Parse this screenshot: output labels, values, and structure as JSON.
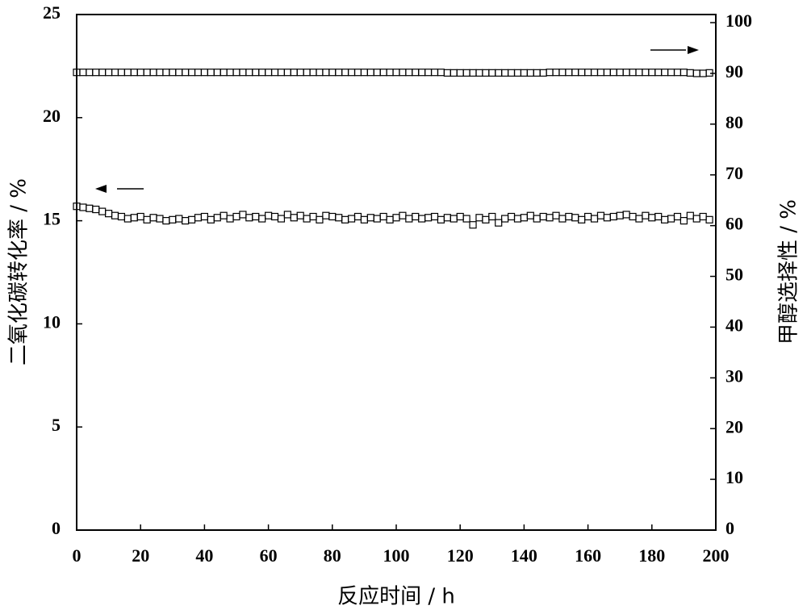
{
  "chart_data": {
    "type": "scatter",
    "xlabel": "反应时间 / h",
    "ylabel": "二氧化碳转化率 / %",
    "y2label": "甲醇选择性 / %",
    "x": [
      0,
      2,
      4,
      6,
      8,
      10,
      12,
      14,
      16,
      18,
      20,
      22,
      24,
      26,
      28,
      30,
      32,
      34,
      36,
      38,
      40,
      42,
      44,
      46,
      48,
      50,
      52,
      54,
      56,
      58,
      60,
      62,
      64,
      66,
      68,
      70,
      72,
      74,
      76,
      78,
      80,
      82,
      84,
      86,
      88,
      90,
      92,
      94,
      96,
      98,
      100,
      102,
      104,
      106,
      108,
      110,
      112,
      114,
      116,
      118,
      120,
      122,
      124,
      126,
      128,
      130,
      132,
      134,
      136,
      138,
      140,
      142,
      144,
      146,
      148,
      150,
      152,
      154,
      156,
      158,
      160,
      162,
      164,
      166,
      168,
      170,
      172,
      174,
      176,
      178,
      180,
      182,
      184,
      186,
      188,
      190,
      192,
      194,
      196,
      198
    ],
    "series": [
      {
        "color": "#000000",
        "values": [
          15.7,
          15.65,
          15.6,
          15.55,
          15.45,
          15.35,
          15.25,
          15.2,
          15.1,
          15.15,
          15.2,
          15.05,
          15.15,
          15.1,
          15.0,
          15.05,
          15.1,
          15.0,
          15.05,
          15.15,
          15.2,
          15.05,
          15.15,
          15.25,
          15.1,
          15.2,
          15.3,
          15.15,
          15.2,
          15.1,
          15.25,
          15.2,
          15.1,
          15.3,
          15.15,
          15.25,
          15.1,
          15.2,
          15.05,
          15.25,
          15.2,
          15.15,
          15.05,
          15.1,
          15.2,
          15.05,
          15.15,
          15.1,
          15.2,
          15.05,
          15.15,
          15.25,
          15.1,
          15.2,
          15.1,
          15.15,
          15.2,
          15.05,
          15.15,
          15.1,
          15.2,
          15.1,
          14.8,
          15.15,
          15.05,
          15.2,
          14.9,
          15.1,
          15.2,
          15.1,
          15.15,
          15.25,
          15.1,
          15.2,
          15.15,
          15.25,
          15.1,
          15.2,
          15.15,
          15.05,
          15.2,
          15.1,
          15.25,
          15.15,
          15.2,
          15.25,
          15.3,
          15.2,
          15.1,
          15.25,
          15.15,
          15.2,
          15.05,
          15.1,
          15.2,
          15.0,
          15.25,
          15.1,
          15.2,
          15.05
        ]
      },
      {
        "color": "#000000",
        "axis": "y2",
        "values": [
          90.2,
          90.2,
          90.2,
          90.2,
          90.2,
          90.2,
          90.2,
          90.2,
          90.2,
          90.2,
          90.2,
          90.2,
          90.2,
          90.2,
          90.2,
          90.2,
          90.2,
          90.2,
          90.2,
          90.2,
          90.2,
          90.2,
          90.2,
          90.2,
          90.2,
          90.2,
          90.2,
          90.2,
          90.2,
          90.2,
          90.2,
          90.2,
          90.2,
          90.2,
          90.2,
          90.2,
          90.2,
          90.2,
          90.2,
          90.2,
          90.2,
          90.2,
          90.2,
          90.2,
          90.2,
          90.2,
          90.2,
          90.2,
          90.2,
          90.2,
          90.2,
          90.2,
          90.2,
          90.2,
          90.2,
          90.2,
          90.2,
          90.2,
          90.1,
          90.1,
          90.1,
          90.1,
          90.1,
          90.1,
          90.1,
          90.1,
          90.1,
          90.1,
          90.1,
          90.1,
          90.1,
          90.1,
          90.1,
          90.1,
          90.2,
          90.2,
          90.2,
          90.2,
          90.2,
          90.2,
          90.2,
          90.2,
          90.2,
          90.2,
          90.2,
          90.2,
          90.2,
          90.2,
          90.2,
          90.2,
          90.2,
          90.2,
          90.2,
          90.2,
          90.2,
          90.2,
          90.1,
          90.0,
          90.0,
          90.1
        ]
      }
    ],
    "xlim": [
      0,
      200
    ],
    "xticks": [
      0,
      20,
      40,
      60,
      80,
      100,
      120,
      140,
      160,
      180,
      200
    ],
    "ylim": [
      0,
      25
    ],
    "yticks": [
      0,
      5,
      10,
      15,
      20,
      25
    ],
    "y2lim": [
      0,
      101.6
    ],
    "y2ticks": [
      0,
      10,
      20,
      30,
      40,
      50,
      60,
      70,
      80,
      90,
      100
    ]
  }
}
